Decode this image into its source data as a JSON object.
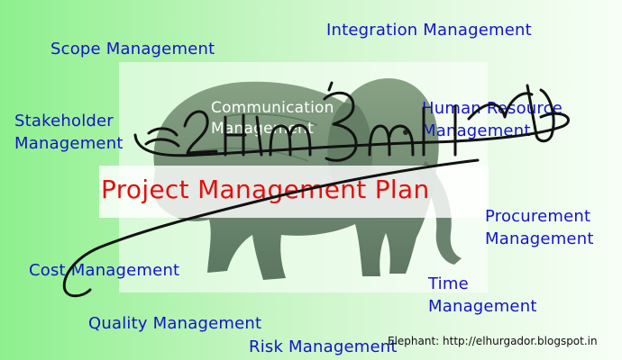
{
  "diagram": {
    "central_topic": "Project Management Plan",
    "knowledge_areas": {
      "integration": "Integration Management",
      "scope": "Scope Management",
      "stakeholder": "Stakeholder\nManagement",
      "communication": "Communication\nManagement",
      "human_resource": "Human Resource\nManagement",
      "procurement": "Procurement\nManagement",
      "cost": "Cost Management",
      "time": "Time\nManagement",
      "quality": "Quality Management",
      "risk": "Risk Management"
    },
    "credit": "Elephant: http://elhurgador.blogspot.in"
  },
  "colors": {
    "label_text": "#1414c8",
    "title_text": "#e01010",
    "ink": "#111111",
    "background_left": "#8df08d",
    "background_right": "#f7fff6"
  }
}
